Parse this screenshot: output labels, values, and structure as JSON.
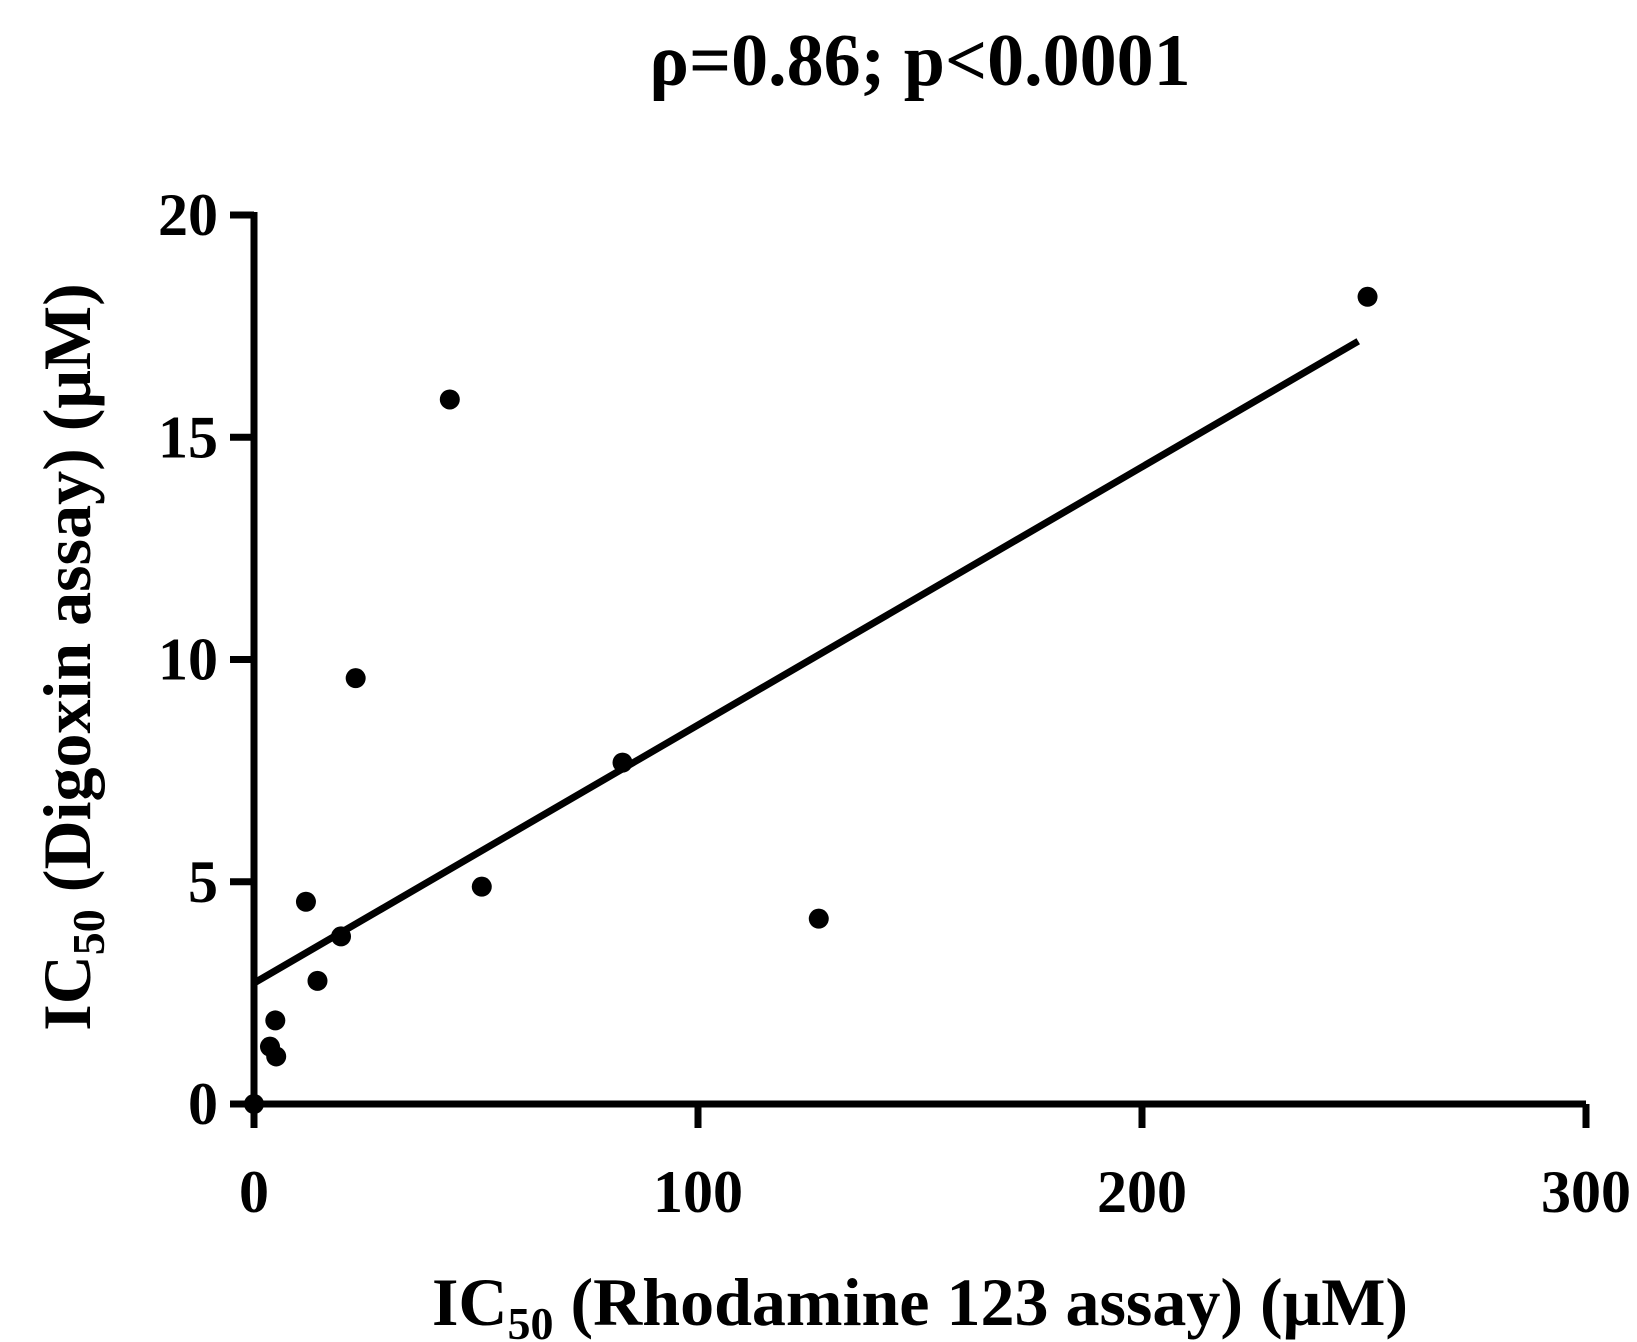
{
  "chart_data": {
    "type": "scatter",
    "title": "ρ=0.86; p<0.0001",
    "x_label": {
      "main": "IC",
      "sub": "50",
      "rest": " (Rhodamine 123 assay) (μM)"
    },
    "y_label": {
      "main": "IC",
      "sub": "50",
      "rest": " (Digoxin assay) (μM)"
    },
    "x": [
      0,
      3.6,
      5,
      4.8,
      11.7,
      14.3,
      19.6,
      22.9,
      44.1,
      51.3,
      83,
      127.2,
      250.8
    ],
    "values": [
      0,
      1.29,
      1.07,
      1.88,
      4.55,
      2.77,
      3.77,
      9.58,
      15.85,
      4.89,
      7.68,
      4.17,
      18.16
    ],
    "color": "#000000",
    "fit_line": {
      "x": [
        0,
        248.7
      ],
      "y": [
        2.72,
        17.16
      ]
    },
    "xlim": [
      0,
      300
    ],
    "xticks": [
      0,
      100,
      200,
      300
    ],
    "ylim": [
      0,
      20
    ],
    "yticks": [
      0,
      5,
      10,
      15,
      20
    ]
  }
}
